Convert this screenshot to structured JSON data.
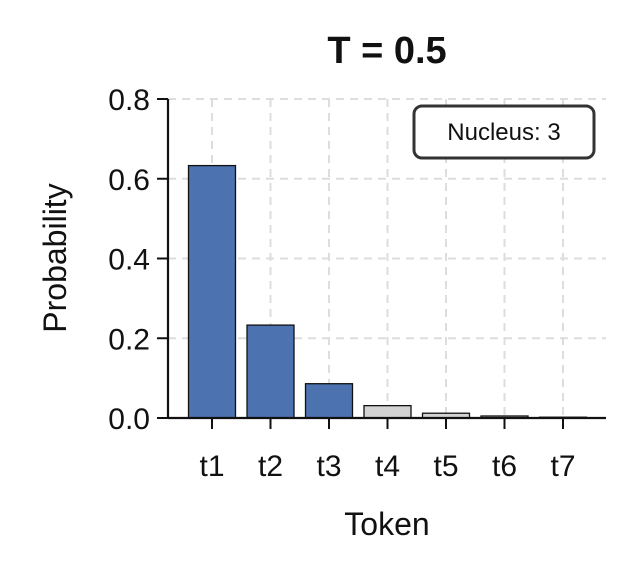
{
  "chart_data": {
    "type": "bar",
    "title": "T = 0.5",
    "xlabel": "Token",
    "ylabel": "Probability",
    "categories": [
      "t1",
      "t2",
      "t3",
      "t4",
      "t5",
      "t6",
      "t7"
    ],
    "values": [
      0.633,
      0.233,
      0.086,
      0.031,
      0.012,
      0.005,
      0.002
    ],
    "in_nucleus": [
      true,
      true,
      true,
      false,
      false,
      false,
      false
    ],
    "ylim": [
      0,
      0.8
    ],
    "yticks": [
      "0.0",
      "0.2",
      "0.4",
      "0.6",
      "0.8"
    ],
    "grid": true,
    "annotation": "Nucleus: 3",
    "colors": {
      "nucleus": "#4c72b0",
      "outside": "#d3d3d3",
      "edge": "#111111",
      "grid": "#dddddd"
    }
  }
}
